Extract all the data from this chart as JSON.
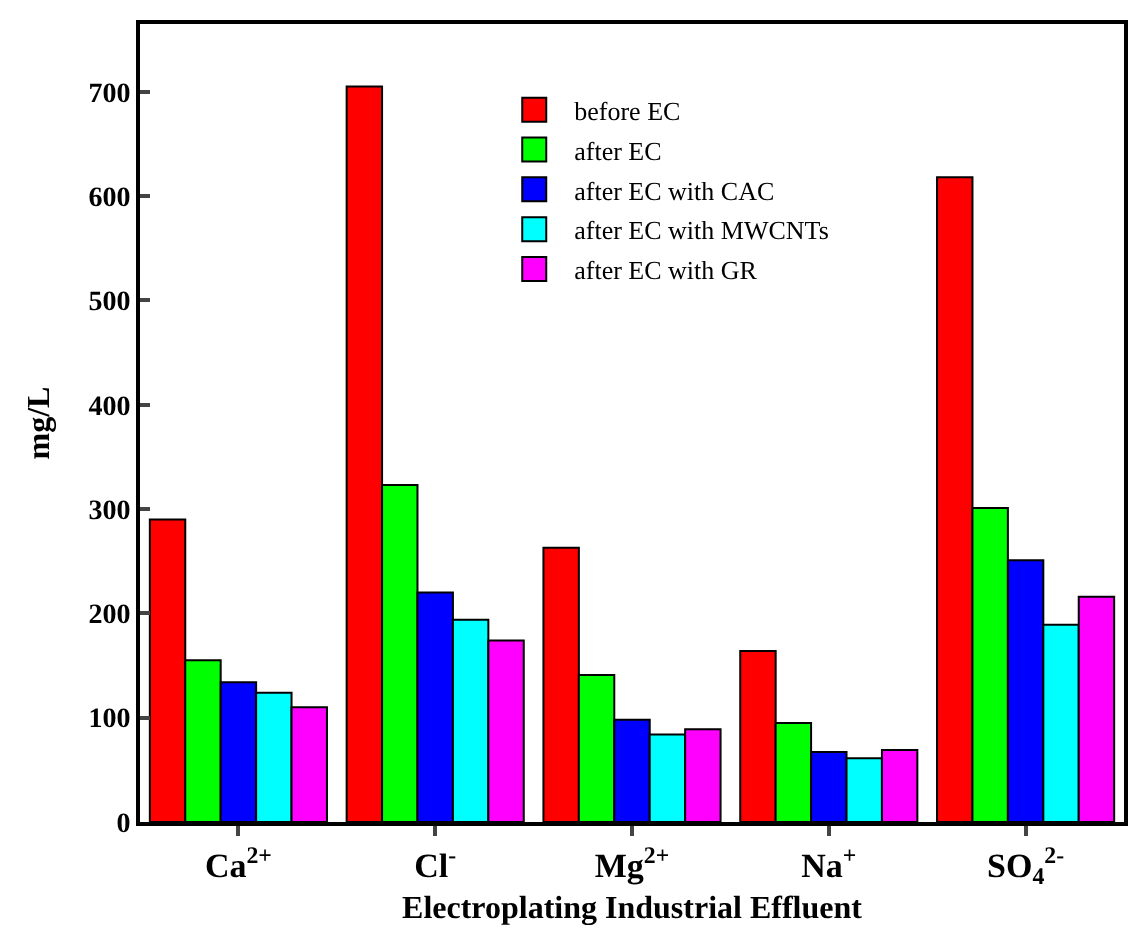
{
  "chart_data": {
    "type": "bar",
    "xlabel": "Electroplating Industrial Effluent",
    "ylabel": "mg/L",
    "categories": [
      "Ca$^{2+}$",
      "Cl$^{-}$",
      "Mg$^{2+}$",
      "Na$^{+}$",
      "SO$_{4}$$^{2-}$"
    ],
    "series": [
      {
        "name": "before EC",
        "color": "#ff0000",
        "values": [
          290,
          705,
          263,
          164,
          618
        ]
      },
      {
        "name": "after EC",
        "color": "#00ff00",
        "values": [
          155,
          323,
          141,
          95,
          301
        ]
      },
      {
        "name": "after EC with CAC",
        "color": "#0000ff",
        "values": [
          134,
          220,
          98,
          67,
          251
        ]
      },
      {
        "name": "after EC with MWCNTs",
        "color": "#00ffff",
        "values": [
          124,
          194,
          84,
          61,
          189
        ]
      },
      {
        "name": "after EC with GR",
        "color": "#ff00ff",
        "values": [
          110,
          174,
          89,
          69,
          216
        ]
      }
    ],
    "ylim": [
      0,
      765
    ],
    "yticks": [
      0,
      100,
      200,
      300,
      400,
      500,
      600,
      700
    ],
    "legend": "top"
  }
}
